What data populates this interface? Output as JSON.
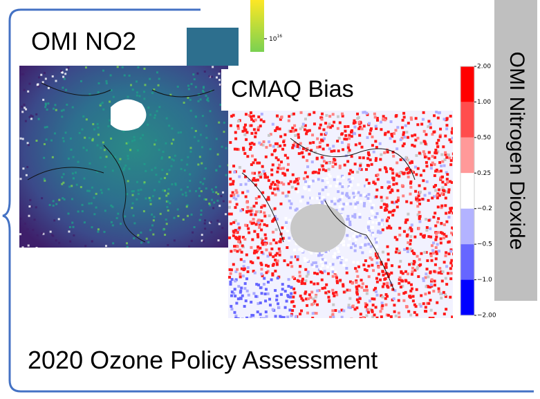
{
  "panels": [
    {
      "title": "OMI NO2",
      "colorbar": {
        "tick": {
          "base": "10",
          "exponent": "16"
        }
      }
    },
    {
      "title": "CMAQ Bias",
      "colorbar": {
        "ticks": [
          "2.00",
          "1.00",
          "0.50",
          "0.25",
          "−0.2",
          "−0.5",
          "−1.0",
          "−2.00"
        ]
      }
    }
  ],
  "side_label": "OMI Nitrogen Dioxide",
  "footer": "2020 Ozone Policy Assessment"
}
